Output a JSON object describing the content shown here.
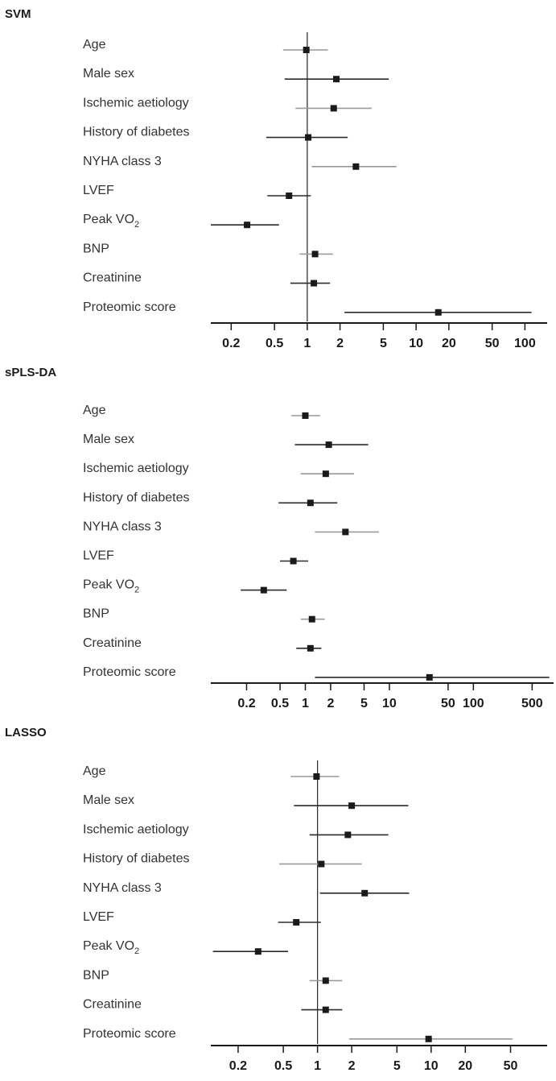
{
  "chart_data": [
    {
      "type": "forest",
      "title": "SVM",
      "scale": "log",
      "xlim": [
        0.13,
        160
      ],
      "ticks": [
        {
          "v": 0.2,
          "label": "0.2"
        },
        {
          "v": 0.5,
          "label": "0.5"
        },
        {
          "v": 1,
          "label": "1"
        },
        {
          "v": 2,
          "label": "2"
        },
        {
          "v": 5,
          "label": "5"
        },
        {
          "v": 10,
          "label": "10"
        },
        {
          "v": 20,
          "label": "20"
        },
        {
          "v": 50,
          "label": "50"
        },
        {
          "v": 100,
          "label": "100"
        }
      ],
      "reference": 1,
      "rows": [
        {
          "label": "Age",
          "est": 0.98,
          "lo": 0.6,
          "hi": 1.55,
          "shade": "light"
        },
        {
          "label": "Male sex",
          "est": 1.85,
          "lo": 0.62,
          "hi": 5.6,
          "shade": "dark"
        },
        {
          "label": "Ischemic aetiology",
          "est": 1.75,
          "lo": 0.78,
          "hi": 3.9,
          "shade": "light"
        },
        {
          "label": "History of diabetes",
          "est": 1.02,
          "lo": 0.42,
          "hi": 2.35,
          "shade": "dark"
        },
        {
          "label": "NYHA class 3",
          "est": 2.8,
          "lo": 1.1,
          "hi": 6.6,
          "shade": "light"
        },
        {
          "label": "LVEF",
          "est": 0.68,
          "lo": 0.43,
          "hi": 1.08,
          "shade": "dark"
        },
        {
          "label": "Peak VO",
          "sub": "2",
          "est": 0.28,
          "lo": 0.13,
          "hi": 0.55,
          "shade": "dark"
        },
        {
          "label": "BNP",
          "est": 1.18,
          "lo": 0.85,
          "hi": 1.72,
          "shade": "light"
        },
        {
          "label": "Creatinine",
          "est": 1.15,
          "lo": 0.7,
          "hi": 1.62,
          "shade": "dark"
        },
        {
          "label": "Proteomic score",
          "est": 16,
          "lo": 2.2,
          "hi": 115,
          "shade": "dark"
        }
      ]
    },
    {
      "type": "forest",
      "title": "sPLS-DA",
      "scale": "log",
      "xlim": [
        0.075,
        900
      ],
      "ticks": [
        {
          "v": 0.2,
          "label": "0.2"
        },
        {
          "v": 0.5,
          "label": "0.5"
        },
        {
          "v": 1,
          "label": "1"
        },
        {
          "v": 2,
          "label": "2"
        },
        {
          "v": 5,
          "label": "5"
        },
        {
          "v": 10,
          "label": "10"
        },
        {
          "v": 50,
          "label": "50"
        },
        {
          "v": 100,
          "label": "100"
        },
        {
          "v": 500,
          "label": "500"
        }
      ],
      "reference": null,
      "rows": [
        {
          "label": "Age",
          "est": 1.0,
          "lo": 0.68,
          "hi": 1.5,
          "shade": "light"
        },
        {
          "label": "Male sex",
          "est": 1.9,
          "lo": 0.75,
          "hi": 5.6,
          "shade": "dark"
        },
        {
          "label": "Ischemic aetiology",
          "est": 1.75,
          "lo": 0.88,
          "hi": 3.8,
          "shade": "light"
        },
        {
          "label": "History of diabetes",
          "est": 1.15,
          "lo": 0.48,
          "hi": 2.4,
          "shade": "dark"
        },
        {
          "label": "NYHA class 3",
          "est": 3.0,
          "lo": 1.3,
          "hi": 7.5,
          "shade": "light"
        },
        {
          "label": "LVEF",
          "est": 0.72,
          "lo": 0.5,
          "hi": 1.08,
          "shade": "dark"
        },
        {
          "label": "Peak VO",
          "sub": "2",
          "est": 0.32,
          "lo": 0.17,
          "hi": 0.6,
          "shade": "dark"
        },
        {
          "label": "BNP",
          "est": 1.2,
          "lo": 0.88,
          "hi": 1.7,
          "shade": "light"
        },
        {
          "label": "Creatinine",
          "est": 1.15,
          "lo": 0.78,
          "hi": 1.55,
          "shade": "dark"
        },
        {
          "label": "Proteomic score",
          "est": 30,
          "lo": 1.3,
          "hi": 800,
          "shade": "dark"
        }
      ]
    },
    {
      "type": "forest",
      "title": "LASSO",
      "scale": "log",
      "xlim": [
        0.115,
        105
      ],
      "ticks": [
        {
          "v": 0.2,
          "label": "0.2"
        },
        {
          "v": 0.5,
          "label": "0.5"
        },
        {
          "v": 1,
          "label": "1"
        },
        {
          "v": 2,
          "label": "2"
        },
        {
          "v": 5,
          "label": "5"
        },
        {
          "v": 10,
          "label": "10"
        },
        {
          "v": 20,
          "label": "20"
        },
        {
          "v": 50,
          "label": "50"
        }
      ],
      "reference": 1,
      "rows": [
        {
          "label": "Age",
          "est": 0.98,
          "lo": 0.58,
          "hi": 1.55,
          "shade": "light"
        },
        {
          "label": "Male sex",
          "est": 2.0,
          "lo": 0.62,
          "hi": 6.3,
          "shade": "dark"
        },
        {
          "label": "Ischemic aetiology",
          "est": 1.85,
          "lo": 0.85,
          "hi": 4.2,
          "shade": "dark"
        },
        {
          "label": "History of diabetes",
          "est": 1.08,
          "lo": 0.46,
          "hi": 2.45,
          "shade": "light"
        },
        {
          "label": "NYHA class 3",
          "est": 2.6,
          "lo": 1.05,
          "hi": 6.4,
          "shade": "dark"
        },
        {
          "label": "LVEF",
          "est": 0.65,
          "lo": 0.45,
          "hi": 1.07,
          "shade": "dark"
        },
        {
          "label": "Peak VO",
          "sub": "2",
          "est": 0.3,
          "lo": 0.12,
          "hi": 0.55,
          "shade": "dark"
        },
        {
          "label": "BNP",
          "est": 1.18,
          "lo": 0.85,
          "hi": 1.65,
          "shade": "light"
        },
        {
          "label": "Creatinine",
          "est": 1.18,
          "lo": 0.72,
          "hi": 1.65,
          "shade": "dark"
        },
        {
          "label": "Proteomic score",
          "est": 9.5,
          "lo": 1.9,
          "hi": 52,
          "shade": "light"
        }
      ]
    }
  ]
}
